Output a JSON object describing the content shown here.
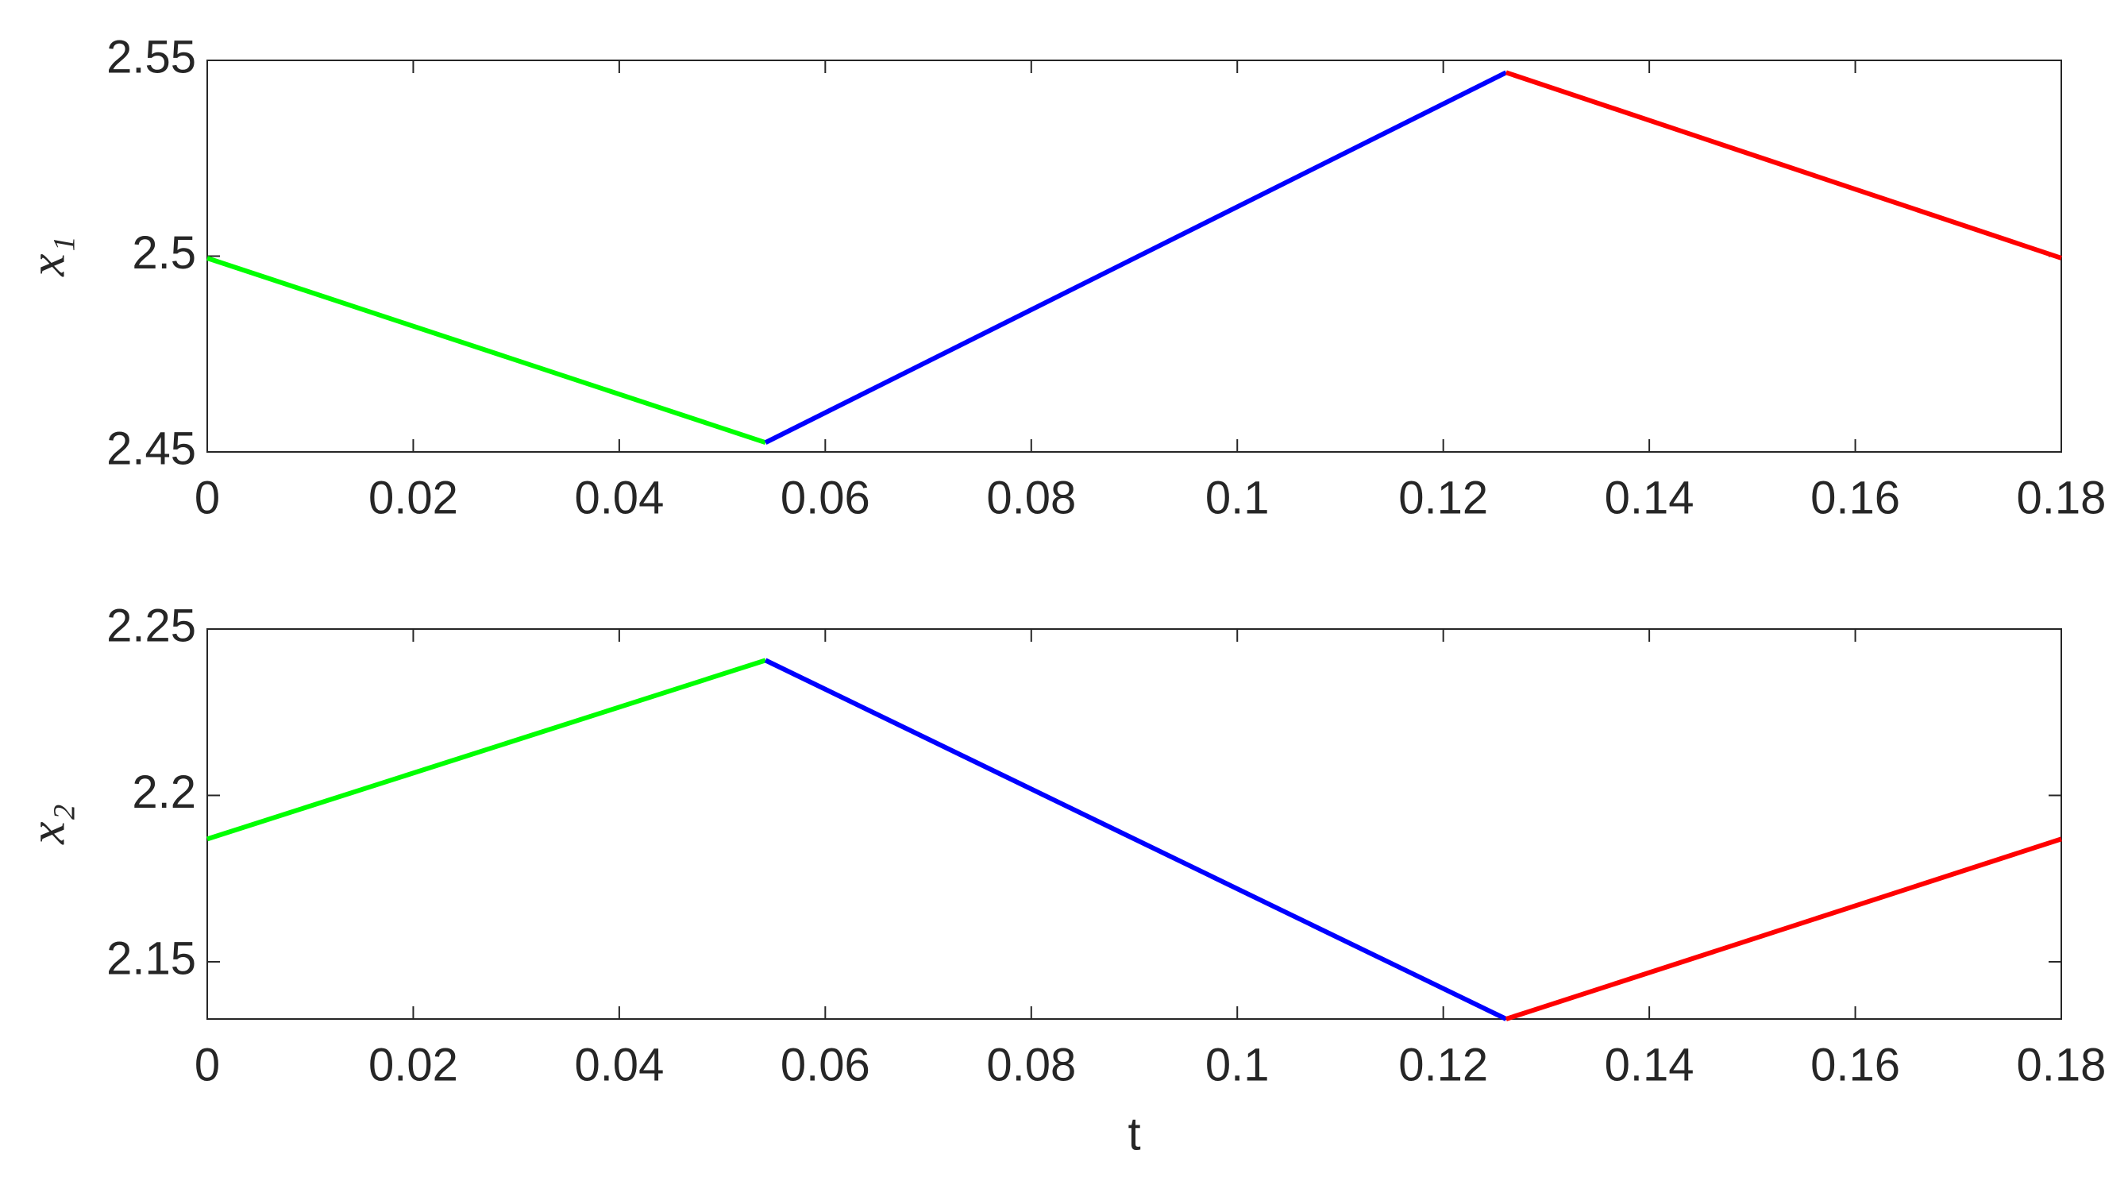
{
  "chart_data": [
    {
      "type": "line",
      "ylabel": "x₁",
      "x": [
        0,
        0.0542,
        0.1261,
        0.18
      ],
      "series": [
        {
          "color": "#00ff00",
          "values": [
            2.4995,
            2.4524,
            null,
            null
          ]
        },
        {
          "color": "#0000ff",
          "values": [
            null,
            2.4524,
            2.5469,
            null
          ]
        },
        {
          "color": "#ff0000",
          "values": [
            null,
            null,
            2.5469,
            2.4995
          ]
        }
      ],
      "xlim": [
        0,
        0.18
      ],
      "xticks": [
        0,
        0.02,
        0.04,
        0.06,
        0.08,
        0.1,
        0.12,
        0.14,
        0.16,
        0.18
      ],
      "ylim": [
        2.45,
        2.55
      ],
      "yticks": [
        2.45,
        2.5,
        2.55
      ],
      "grid": false
    },
    {
      "type": "line",
      "ylabel": "x₂",
      "xlabel": "t",
      "x": [
        0,
        0.0542,
        0.1261,
        0.18
      ],
      "series": [
        {
          "color": "#00ff00",
          "values": [
            2.1869,
            2.2406,
            null,
            null
          ]
        },
        {
          "color": "#0000ff",
          "values": [
            null,
            2.2406,
            2.1328,
            null
          ]
        },
        {
          "color": "#ff0000",
          "values": [
            null,
            null,
            2.1328,
            2.1869
          ]
        }
      ],
      "xlim": [
        0,
        0.18
      ],
      "xticks": [
        0,
        0.02,
        0.04,
        0.06,
        0.08,
        0.1,
        0.12,
        0.14,
        0.16,
        0.18
      ],
      "ylim": [
        2.1328,
        2.25
      ],
      "yticks": [
        2.15,
        2.2,
        2.25
      ],
      "grid": false
    }
  ]
}
